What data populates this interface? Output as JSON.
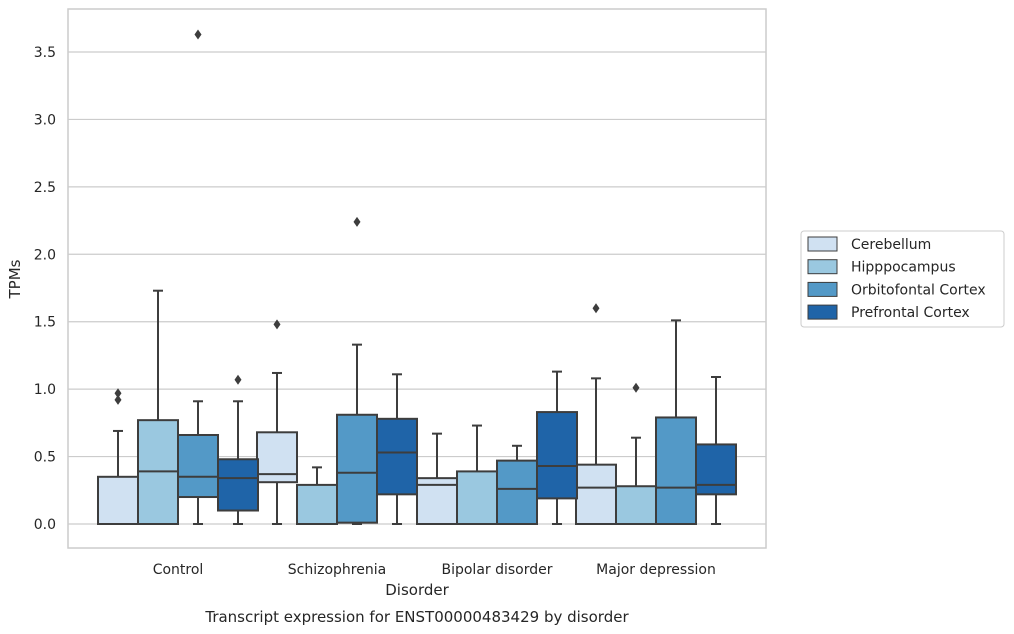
{
  "chart_data": {
    "type": "box",
    "title": "",
    "caption": "Transcript expression for ENST00000483429 by disorder",
    "xlabel": "Disorder",
    "ylabel": "TPMs",
    "ylim": [
      -0.17,
      3.8
    ],
    "yticks": [
      "0.0",
      "0.5",
      "1.0",
      "1.5",
      "2.0",
      "2.5",
      "3.0",
      "3.5"
    ],
    "grid": "horizontal",
    "legend_placement": "right",
    "categories": [
      "Control",
      "Schizophrenia",
      "Bipolar disorder",
      "Major depression"
    ],
    "series": [
      {
        "name": "Cerebellum",
        "color": "#d0e1f2",
        "boxes": [
          {
            "min": 0.0,
            "q1": 0.0,
            "median": 0.0,
            "q3": 0.35,
            "max": 0.69,
            "outliers": [
              0.92,
              0.97
            ]
          },
          {
            "min": 0.0,
            "q1": 0.31,
            "median": 0.37,
            "q3": 0.68,
            "max": 1.12,
            "outliers": [
              1.48
            ]
          },
          {
            "min": 0.0,
            "q1": 0.0,
            "median": 0.29,
            "q3": 0.34,
            "max": 0.67,
            "outliers": []
          },
          {
            "min": 0.0,
            "q1": 0.0,
            "median": 0.27,
            "q3": 0.44,
            "max": 1.08,
            "outliers": [
              1.6
            ]
          }
        ]
      },
      {
        "name": "Hipppocampus",
        "color": "#9ac8e0",
        "boxes": [
          {
            "min": 0.0,
            "q1": 0.0,
            "median": 0.39,
            "q3": 0.77,
            "max": 1.73,
            "outliers": []
          },
          {
            "min": 0.0,
            "q1": 0.0,
            "median": 0.0,
            "q3": 0.29,
            "max": 0.42,
            "outliers": []
          },
          {
            "min": 0.0,
            "q1": 0.0,
            "median": 0.0,
            "q3": 0.39,
            "max": 0.73,
            "outliers": []
          },
          {
            "min": 0.0,
            "q1": 0.0,
            "median": 0.0,
            "q3": 0.28,
            "max": 0.64,
            "outliers": [
              1.01
            ]
          }
        ]
      },
      {
        "name": "Orbitofontal Cortex",
        "color": "#5399c7",
        "boxes": [
          {
            "min": 0.0,
            "q1": 0.2,
            "median": 0.35,
            "q3": 0.66,
            "max": 0.91,
            "outliers": [
              3.63
            ]
          },
          {
            "min": 0.0,
            "q1": 0.01,
            "median": 0.38,
            "q3": 0.81,
            "max": 1.33,
            "outliers": [
              2.24
            ]
          },
          {
            "min": 0.0,
            "q1": 0.0,
            "median": 0.26,
            "q3": 0.47,
            "max": 0.58,
            "outliers": []
          },
          {
            "min": 0.0,
            "q1": 0.0,
            "median": 0.27,
            "q3": 0.79,
            "max": 1.51,
            "outliers": []
          }
        ]
      },
      {
        "name": "Prefrontal Cortex",
        "color": "#1f64a8",
        "boxes": [
          {
            "min": 0.0,
            "q1": 0.1,
            "median": 0.34,
            "q3": 0.48,
            "max": 0.91,
            "outliers": [
              1.07
            ]
          },
          {
            "min": 0.0,
            "q1": 0.22,
            "median": 0.53,
            "q3": 0.78,
            "max": 1.11,
            "outliers": []
          },
          {
            "min": 0.0,
            "q1": 0.19,
            "median": 0.43,
            "q3": 0.83,
            "max": 1.13,
            "outliers": []
          },
          {
            "min": 0.0,
            "q1": 0.22,
            "median": 0.29,
            "q3": 0.59,
            "max": 1.09,
            "outliers": []
          }
        ]
      }
    ]
  }
}
